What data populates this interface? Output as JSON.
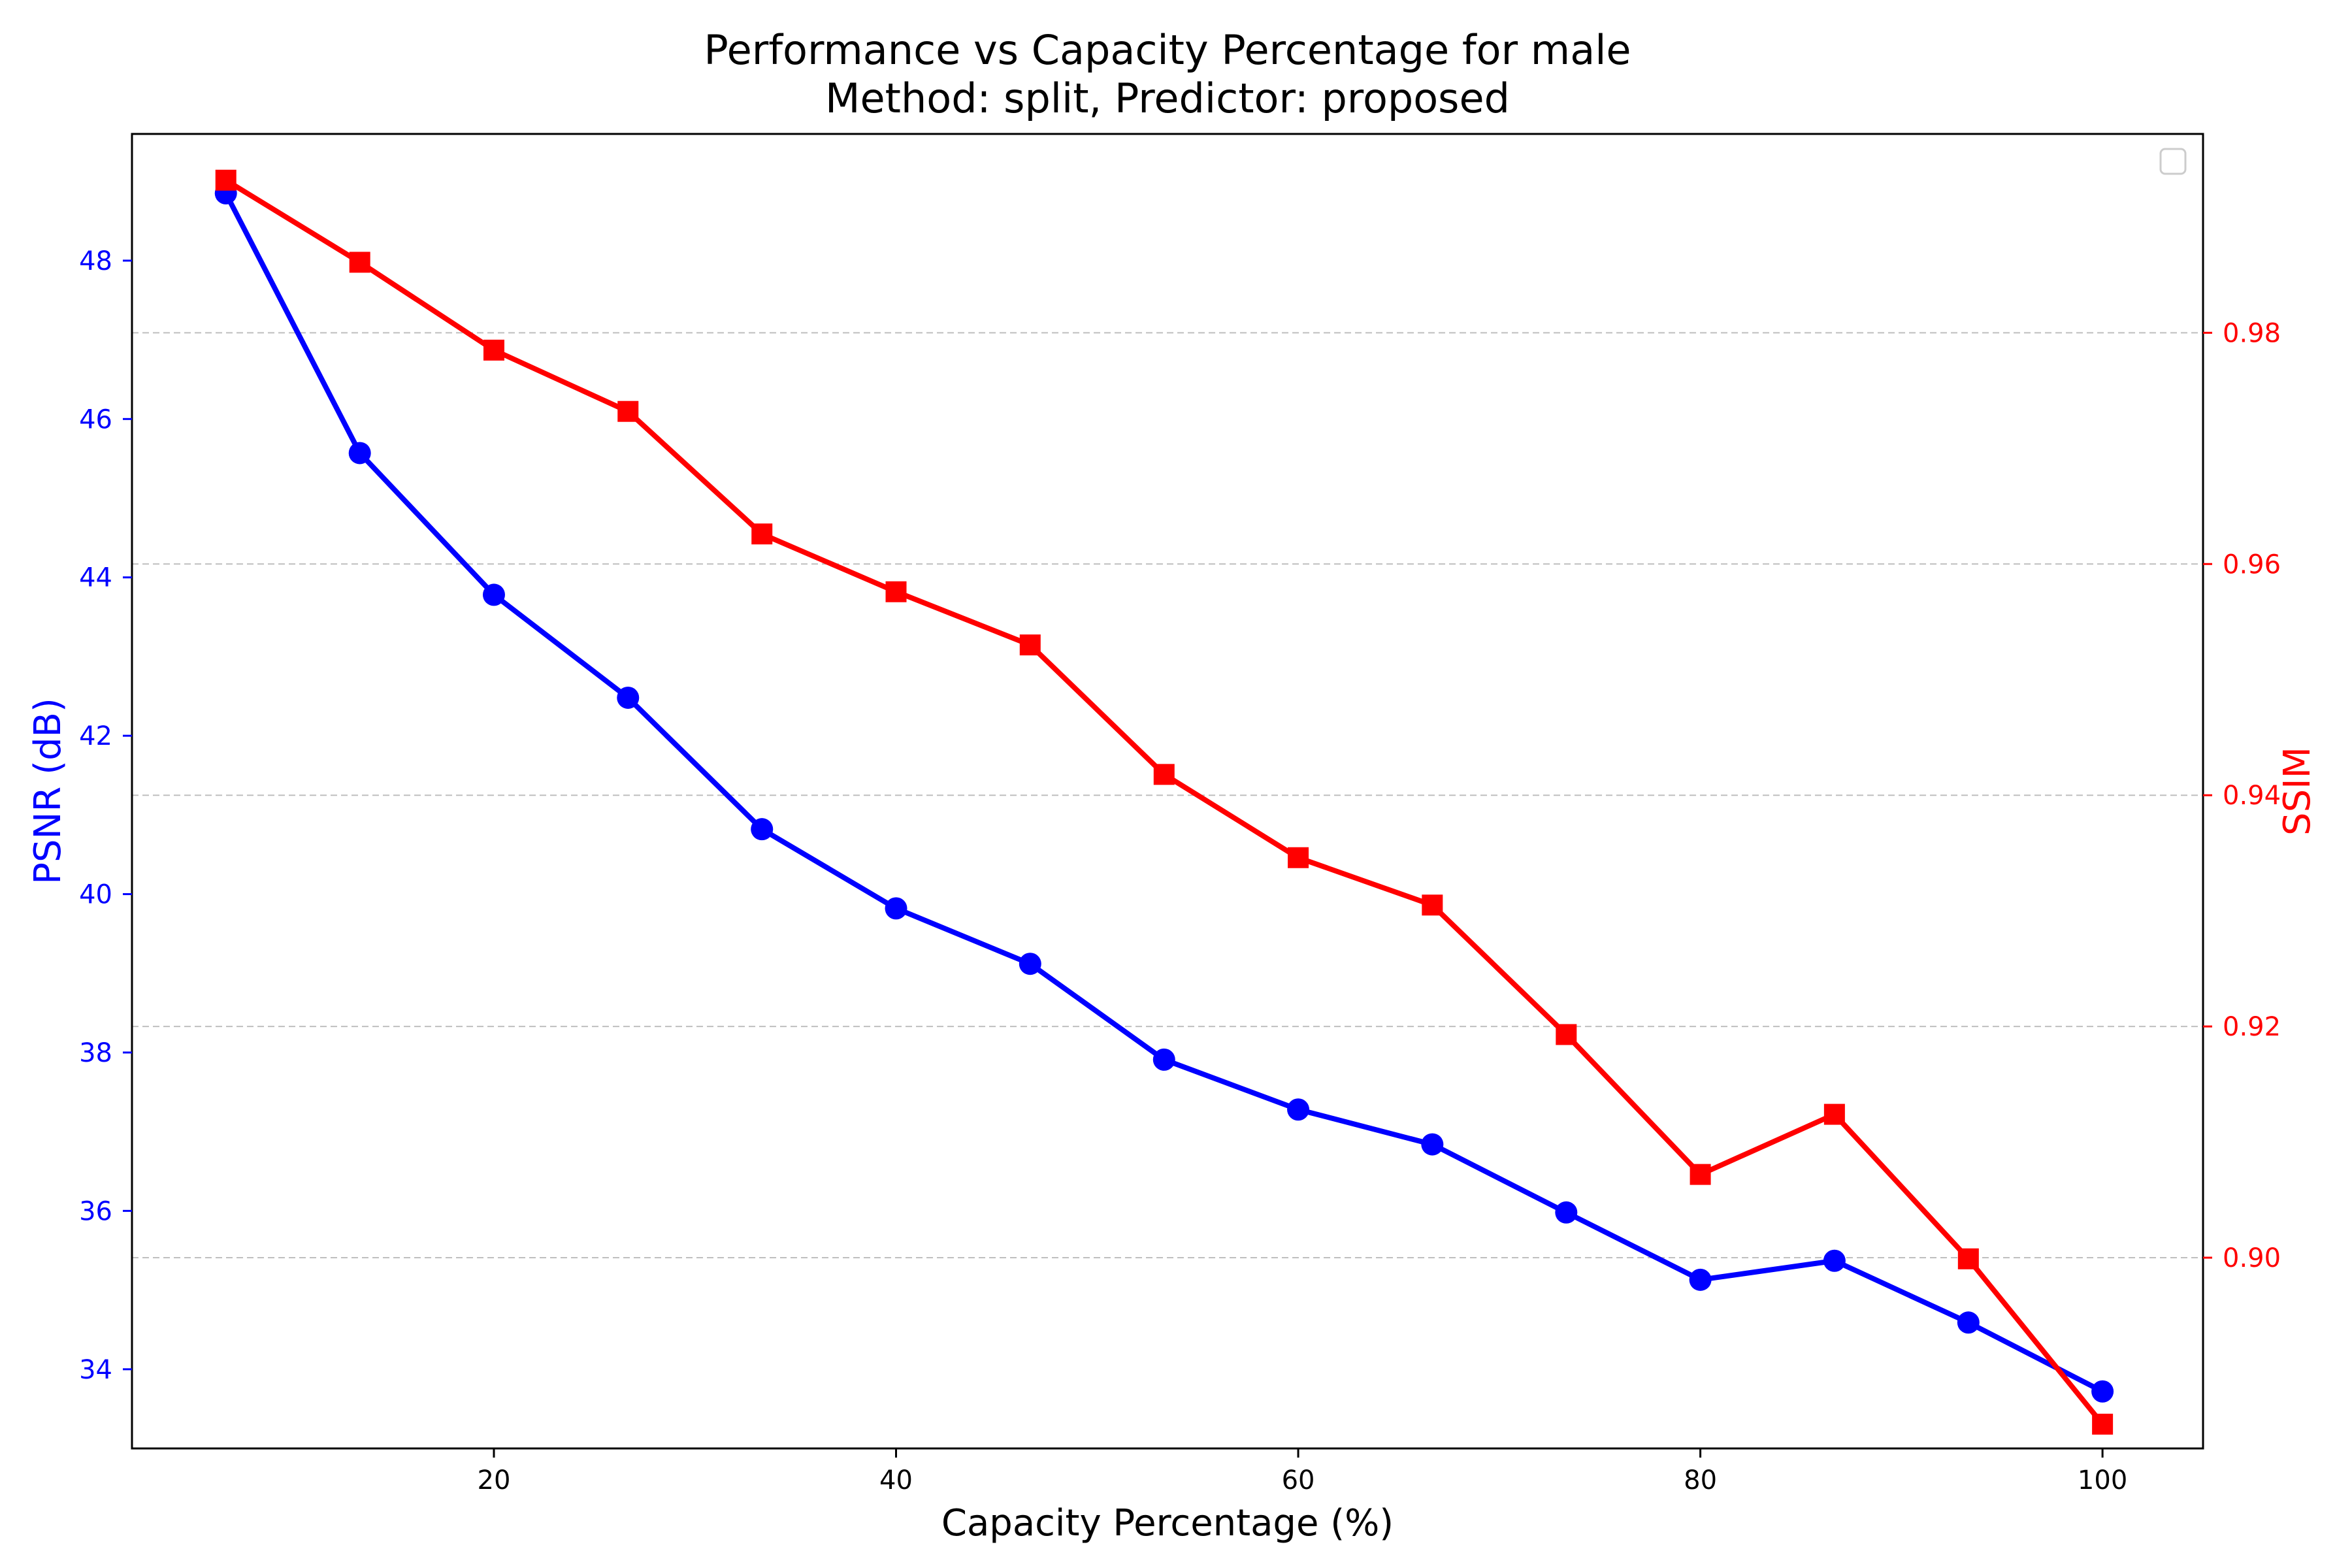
{
  "chart_data": {
    "type": "line",
    "title": "Performance vs Capacity Percentage for male",
    "subtitle": "Method: split, Predictor: proposed",
    "xlabel": "Capacity Percentage (%)",
    "ylabel_left": "PSNR (dB)",
    "ylabel_right": "SSIM",
    "xlim": [
      2,
      105
    ],
    "ylim_left": [
      33.0,
      49.6
    ],
    "ylim_right": [
      0.8835,
      0.9972
    ],
    "x_ticks": [
      20,
      40,
      60,
      80,
      100
    ],
    "y_left_ticks": [
      34,
      36,
      38,
      40,
      42,
      44,
      46,
      48
    ],
    "y_right_ticks": [
      "0.90",
      "0.92",
      "0.94",
      "0.96",
      "0.98"
    ],
    "grid": "horizontal dashed, right axis",
    "legend": "upper right, empty",
    "x": [
      6.67,
      13.33,
      20.0,
      26.67,
      33.33,
      40.0,
      46.67,
      53.33,
      60.0,
      66.67,
      73.33,
      80.0,
      86.67,
      93.33,
      100.0
    ],
    "series": [
      {
        "axis": "left",
        "color": "#0000ff",
        "marker": "circle",
        "values": [
          48.85,
          45.57,
          43.78,
          42.48,
          40.82,
          39.82,
          39.12,
          37.91,
          37.28,
          36.84,
          35.98,
          35.13,
          35.37,
          34.59,
          33.72
        ]
      },
      {
        "axis": "right",
        "color": "#ff0000",
        "marker": "square",
        "values": [
          0.9932,
          0.9861,
          0.9785,
          0.9732,
          0.9626,
          0.9576,
          0.953,
          0.9418,
          0.9346,
          0.9305,
          0.9193,
          0.9072,
          0.9124,
          0.8999,
          0.8856
        ]
      }
    ]
  }
}
